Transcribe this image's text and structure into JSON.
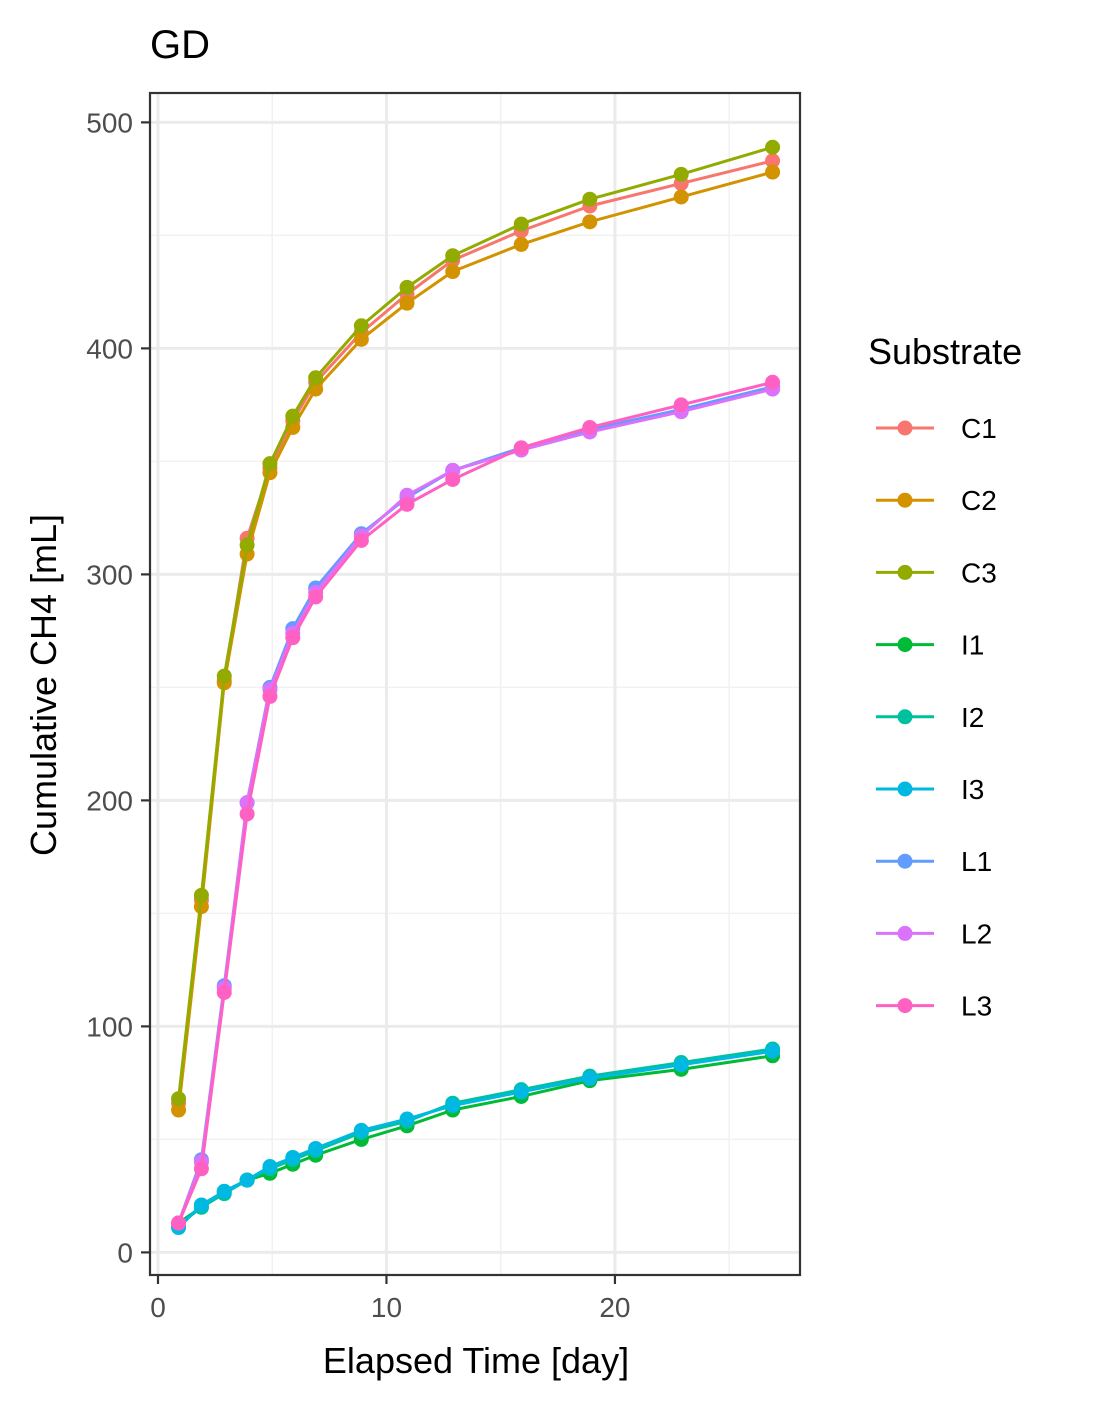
{
  "chart_data": {
    "type": "line",
    "title": "GD",
    "xlabel": "Elapsed Time [day]",
    "ylabel": "Cumulative CH4 [mL]",
    "xlim": [
      -0.35,
      28.1
    ],
    "ylim": [
      -10,
      513
    ],
    "x_ticks": [
      0,
      10,
      20
    ],
    "y_ticks": [
      0,
      100,
      200,
      300,
      400,
      500
    ],
    "grid": true,
    "legend": {
      "title": "Substrate",
      "position": "right"
    },
    "x": [
      0.9,
      1.9,
      2.9,
      3.9,
      4.9,
      5.9,
      6.9,
      8.9,
      10.9,
      12.9,
      15.9,
      18.9,
      22.9,
      26.9
    ],
    "series": [
      {
        "name": "C1",
        "color": "#F8766D",
        "values": [
          66,
          156,
          253,
          316,
          347,
          368,
          385,
          407,
          424,
          439,
          452,
          463,
          473,
          483
        ]
      },
      {
        "name": "C2",
        "color": "#D39200",
        "values": [
          63,
          153,
          252,
          309,
          345,
          365,
          382,
          404,
          420,
          434,
          446,
          456,
          467,
          478
        ]
      },
      {
        "name": "C3",
        "color": "#93AA00",
        "values": [
          68,
          158,
          255,
          313,
          349,
          370,
          387,
          410,
          427,
          441,
          455,
          466,
          477,
          489
        ]
      },
      {
        "name": "I1",
        "color": "#00BA38",
        "values": [
          13,
          20,
          27,
          32,
          35,
          39,
          43,
          50,
          56,
          63,
          69,
          76,
          81,
          87
        ]
      },
      {
        "name": "I2",
        "color": "#00C19F",
        "values": [
          12,
          20,
          26,
          32,
          37,
          41,
          45,
          53,
          58,
          66,
          72,
          78,
          84,
          90
        ]
      },
      {
        "name": "I3",
        "color": "#00B9E3",
        "values": [
          11,
          21,
          27,
          32,
          38,
          42,
          46,
          54,
          59,
          65,
          71,
          77,
          83,
          89
        ]
      },
      {
        "name": "L1",
        "color": "#619CFF",
        "values": [
          13,
          41,
          118,
          199,
          250,
          276,
          294,
          318,
          334,
          346,
          356,
          364,
          373,
          383
        ]
      },
      {
        "name": "L2",
        "color": "#DB72FB",
        "values": [
          13,
          40,
          117,
          199,
          249,
          274,
          292,
          317,
          335,
          346,
          355,
          363,
          372,
          382
        ]
      },
      {
        "name": "L3",
        "color": "#FF61C3",
        "values": [
          13,
          37,
          115,
          194,
          246,
          272,
          290,
          315,
          331,
          342,
          356,
          365,
          375,
          385
        ]
      }
    ]
  }
}
